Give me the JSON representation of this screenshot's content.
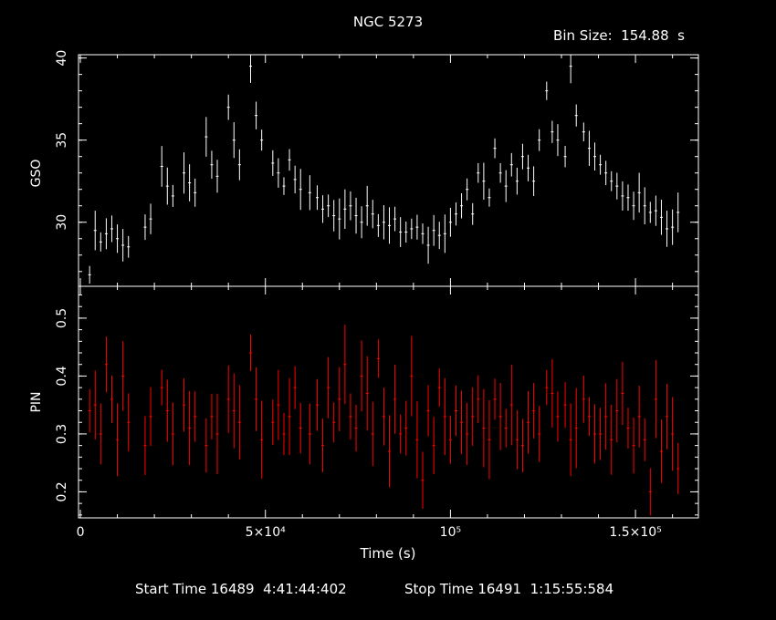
{
  "title": "NGC 5273",
  "bin_size_label": "Bin Size:  154.88  s",
  "start_label": "Start Time 16489  4:41:44:402",
  "stop_label": "Stop Time 16491  1:15:55:584",
  "colors": {
    "gso": "#ffffff",
    "pin": "#ff0000",
    "axes": "#ffffff",
    "background": "#000000"
  },
  "chart_data": [
    {
      "type": "scatter",
      "panel": "top",
      "ylabel": "GSO",
      "xlabel": "",
      "xlim": [
        -500,
        167000
      ],
      "ylim": [
        26.1,
        40.2
      ],
      "yticks": [
        30,
        35,
        40
      ],
      "ytick_labels": [
        "30",
        "35",
        "40"
      ],
      "error_bars": true,
      "series": [
        {
          "color": "#ffffff",
          "x": [
            2500,
            4000,
            5500,
            7000,
            8500,
            10000,
            11500,
            13000,
            17500,
            19000,
            22000,
            23500,
            25000,
            28000,
            29500,
            31000,
            34000,
            35500,
            37000,
            40000,
            41500,
            43000,
            46000,
            47500,
            49000,
            52000,
            53500,
            55000,
            56500,
            58000,
            59500,
            62000,
            64000,
            65500,
            67000,
            68500,
            70000,
            71500,
            73000,
            74500,
            76000,
            77500,
            79000,
            80500,
            82000,
            83500,
            85000,
            86500,
            88000,
            89500,
            91000,
            92500,
            94000,
            95500,
            97000,
            98500,
            100000,
            101500,
            103000,
            104500,
            106000,
            107500,
            109000,
            110500,
            112000,
            113500,
            115000,
            116500,
            118000,
            119500,
            121000,
            122500,
            124000,
            126000,
            127500,
            129000,
            131000,
            132500,
            134000,
            136000,
            137500,
            139000,
            140500,
            142000,
            143500,
            145000,
            146500,
            148000,
            149500,
            151000,
            152500,
            154000,
            155500,
            157000,
            158500,
            160000,
            161500
          ],
          "y": [
            26.8,
            29.5,
            28.8,
            29.3,
            29.6,
            29.0,
            28.6,
            28.5,
            29.7,
            30.2,
            33.4,
            32.2,
            31.6,
            33.0,
            32.4,
            31.8,
            35.2,
            33.5,
            32.8,
            37.0,
            35.0,
            33.5,
            39.5,
            36.5,
            35.0,
            33.6,
            33.0,
            32.2,
            33.8,
            32.6,
            32.0,
            31.8,
            31.5,
            30.8,
            31.0,
            30.4,
            30.2,
            30.8,
            31.0,
            30.4,
            30.0,
            31.0,
            30.5,
            29.8,
            30.0,
            29.8,
            30.2,
            29.4,
            29.4,
            29.6,
            29.7,
            29.3,
            28.6,
            29.5,
            29.2,
            29.3,
            30.0,
            30.5,
            31.0,
            32.0,
            30.5,
            33.0,
            32.5,
            31.5,
            34.5,
            33.0,
            32.2,
            33.5,
            32.5,
            34.0,
            33.3,
            32.5,
            35.0,
            38.0,
            35.5,
            35.0,
            34.0,
            39.5,
            36.5,
            35.5,
            34.5,
            34.0,
            33.5,
            33.0,
            32.5,
            32.2,
            31.6,
            31.5,
            31.0,
            31.8,
            31.0,
            30.6,
            30.7,
            30.3,
            29.6,
            29.7,
            30.6
          ]
        }
      ]
    },
    {
      "type": "scatter",
      "panel": "bottom",
      "ylabel": "PIN",
      "xlabel": "Time (s)",
      "xlim": [
        -500,
        167000
      ],
      "ylim": [
        0.155,
        0.555
      ],
      "yticks": [
        0.2,
        0.3,
        0.4,
        0.5
      ],
      "ytick_labels": [
        "0.2",
        "0.3",
        "0.4",
        "0.5"
      ],
      "xticks": [
        0,
        50000,
        100000,
        150000
      ],
      "xtick_labels": [
        "0",
        "5×10⁴",
        "10⁵",
        "1.5×10⁵"
      ],
      "error_bars": true,
      "series": [
        {
          "color": "#ff0000",
          "x": [
            2500,
            4000,
            5500,
            7000,
            8500,
            10000,
            11500,
            13000,
            17500,
            19000,
            22000,
            23500,
            25000,
            28000,
            29500,
            31000,
            34000,
            35500,
            37000,
            40000,
            41500,
            43000,
            46000,
            47500,
            49000,
            52000,
            53500,
            55000,
            56500,
            58000,
            59500,
            62000,
            64000,
            65500,
            67000,
            68500,
            70000,
            71500,
            73000,
            74500,
            76000,
            77500,
            79000,
            80500,
            82000,
            83500,
            85000,
            86500,
            88000,
            89500,
            91000,
            92500,
            94000,
            95500,
            97000,
            98500,
            100000,
            101500,
            103000,
            104500,
            106000,
            107500,
            109000,
            110500,
            112000,
            113500,
            115000,
            116500,
            118000,
            119500,
            121000,
            122500,
            124000,
            126000,
            127500,
            129000,
            131000,
            132500,
            134000,
            136000,
            137500,
            139000,
            140500,
            142000,
            143500,
            145000,
            146500,
            148000,
            149500,
            151000,
            152500,
            154000,
            155500,
            157000,
            158500,
            160000,
            161500
          ],
          "y": [
            0.34,
            0.35,
            0.3,
            0.42,
            0.36,
            0.29,
            0.4,
            0.32,
            0.28,
            0.33,
            0.38,
            0.34,
            0.3,
            0.35,
            0.31,
            0.33,
            0.28,
            0.33,
            0.3,
            0.36,
            0.34,
            0.32,
            0.44,
            0.36,
            0.29,
            0.32,
            0.35,
            0.3,
            0.33,
            0.38,
            0.31,
            0.3,
            0.35,
            0.28,
            0.38,
            0.32,
            0.36,
            0.42,
            0.33,
            0.31,
            0.4,
            0.37,
            0.3,
            0.43,
            0.33,
            0.27,
            0.36,
            0.3,
            0.31,
            0.4,
            0.29,
            0.22,
            0.34,
            0.28,
            0.38,
            0.33,
            0.29,
            0.34,
            0.32,
            0.3,
            0.33,
            0.36,
            0.31,
            0.29,
            0.36,
            0.33,
            0.31,
            0.35,
            0.29,
            0.28,
            0.32,
            0.34,
            0.3,
            0.38,
            0.37,
            0.33,
            0.35,
            0.29,
            0.31,
            0.36,
            0.33,
            0.3,
            0.3,
            0.33,
            0.29,
            0.34,
            0.37,
            0.31,
            0.28,
            0.33,
            0.29,
            0.2,
            0.36,
            0.27,
            0.33,
            0.3,
            0.24
          ]
        }
      ]
    }
  ]
}
